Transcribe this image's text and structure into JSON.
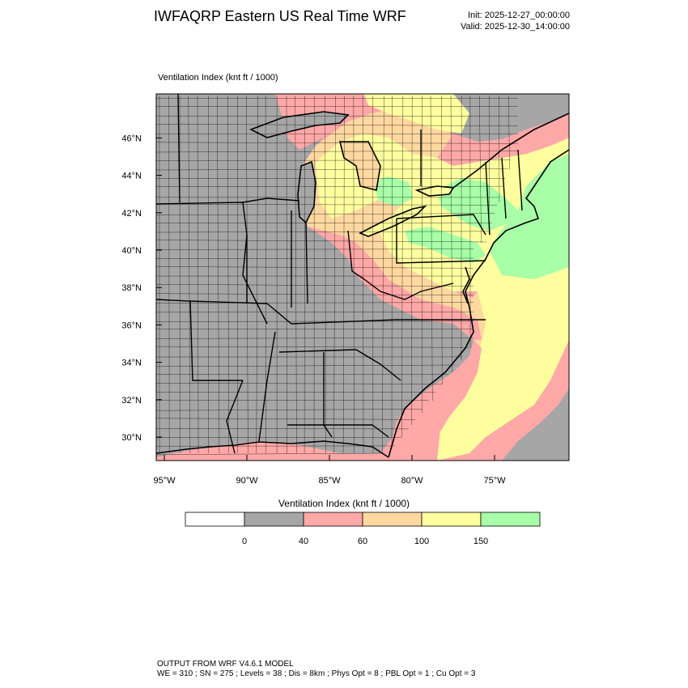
{
  "header": {
    "title": "IWFAQRP Eastern US Real Time WRF",
    "init": "Init: 2025-12-27_00:00:00",
    "valid": "Valid: 2025-12-30_14:00:00"
  },
  "map": {
    "field_label": "Ventilation Index   (knt ft / 1000)",
    "lat_ticks": [
      {
        "value": 46,
        "label": "46°N"
      },
      {
        "value": 44,
        "label": "44°N"
      },
      {
        "value": 42,
        "label": "42°N"
      },
      {
        "value": 40,
        "label": "40°N"
      },
      {
        "value": 38,
        "label": "38°N"
      },
      {
        "value": 36,
        "label": "36°N"
      },
      {
        "value": 34,
        "label": "34°N"
      },
      {
        "value": 32,
        "label": "32°N"
      },
      {
        "value": 30,
        "label": "30°N"
      }
    ],
    "lon_ticks": [
      {
        "value": -95,
        "label": "95°W"
      },
      {
        "value": -90,
        "label": "90°W"
      },
      {
        "value": -85,
        "label": "85°W"
      },
      {
        "value": -80,
        "label": "80°W"
      },
      {
        "value": -75,
        "label": "75°W"
      }
    ],
    "colors": {
      "below_0": "#ffffff",
      "c0_40": "#a6a6a6",
      "c40_60": "#ffa8a8",
      "c60_100": "#ffd8a0",
      "c100_150": "#ffffa0",
      "c150_plus": "#a8ffa8",
      "boundary": "#000000"
    }
  },
  "colorbar": {
    "title": "Ventilation Index  (knt ft / 1000)",
    "labels": [
      "0",
      "40",
      "60",
      "100",
      "150"
    ],
    "bins": [
      {
        "color": "#ffffff"
      },
      {
        "color": "#a6a6a6"
      },
      {
        "color": "#ffa8a8"
      },
      {
        "color": "#ffd8a0"
      },
      {
        "color": "#ffffa0"
      },
      {
        "color": "#a8ffa8"
      }
    ]
  },
  "footer": {
    "line1": "OUTPUT FROM WRF V4.6.1 MODEL",
    "line2": "WE = 310 ; SN = 275 ; Levels = 38 ; Dis = 8km ; Phys Opt = 8 ; PBL Opt = 1 ; Cu Opt = 3"
  }
}
